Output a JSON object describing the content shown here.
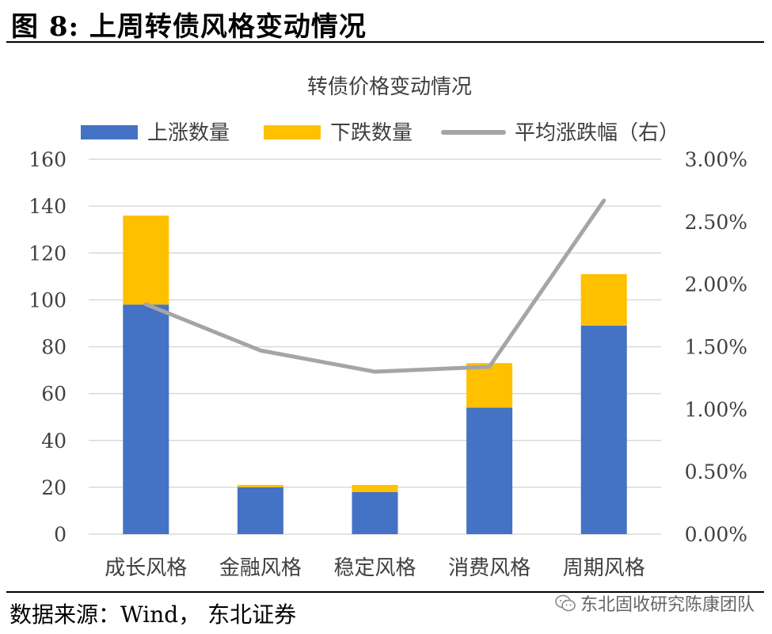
{
  "figure": {
    "title": "图  8:  上周转债风格变动情况",
    "source": "数据来源：Wind，  东北证券",
    "watermark": "东北固收研究陈康团队"
  },
  "colors": {
    "up": "#4472C4",
    "down": "#FFC000",
    "line": "#A5A5A5",
    "grid": "#D9D9D9",
    "text": "#404040"
  },
  "chart_data": {
    "type": "bar",
    "stacked": true,
    "title": "转债价格变动情况",
    "categories": [
      "成长风格",
      "金融风格",
      "稳定风格",
      "消费风格",
      "周期风格"
    ],
    "series": [
      {
        "name": "上涨数量",
        "type": "bar",
        "axis": "left",
        "color": "#4472C4",
        "values": [
          98,
          20,
          18,
          54,
          89
        ]
      },
      {
        "name": "下跌数量",
        "type": "bar",
        "axis": "left",
        "color": "#FFC000",
        "values": [
          38,
          1,
          3,
          19,
          22
        ]
      },
      {
        "name": "平均涨跌幅（右）",
        "type": "line",
        "axis": "right",
        "color": "#A5A5A5",
        "values": [
          1.84,
          1.47,
          1.3,
          1.34,
          2.67
        ]
      }
    ],
    "y_left": {
      "min": 0,
      "max": 160,
      "step": 20,
      "ticks": [
        "0",
        "20",
        "40",
        "60",
        "80",
        "100",
        "120",
        "140",
        "160"
      ]
    },
    "y_right": {
      "min": 0,
      "max": 3,
      "step": 0.5,
      "unit": "%",
      "ticks": [
        "0.00%",
        "0.50%",
        "1.00%",
        "1.50%",
        "2.00%",
        "2.50%",
        "3.00%"
      ]
    },
    "grid": true,
    "legend_position": "top"
  }
}
